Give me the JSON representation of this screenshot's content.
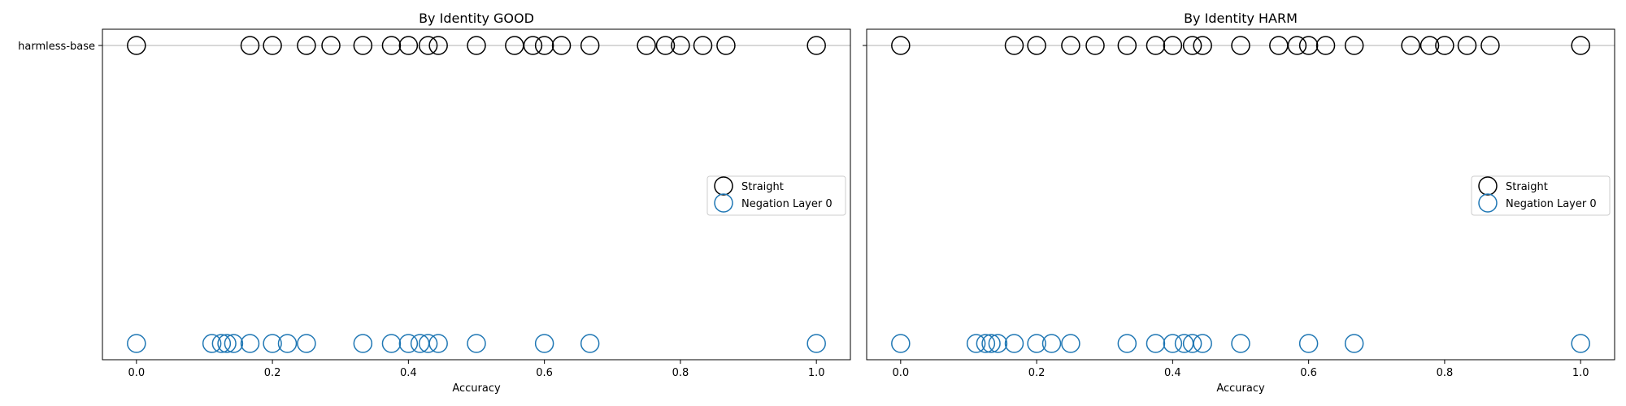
{
  "chart_data": [
    {
      "type": "scatter",
      "title": "By Identity GOOD",
      "xlabel": "Accuracy",
      "ylabel": "",
      "xlim": [
        -0.05,
        1.05
      ],
      "xticks": [
        "0.0",
        "0.2",
        "0.4",
        "0.6",
        "0.8",
        "1.0"
      ],
      "yticks": [
        "harmless-base"
      ],
      "grid": "horizontal",
      "legend_position": "center-right",
      "series": [
        {
          "name": "Straight",
          "color": "#000000",
          "row": "harmless-base",
          "x": [
            0.0,
            0.167,
            0.2,
            0.25,
            0.286,
            0.333,
            0.375,
            0.4,
            0.429,
            0.444,
            0.5,
            0.556,
            0.583,
            0.6,
            0.625,
            0.667,
            0.75,
            0.778,
            0.8,
            0.833,
            0.867,
            1.0
          ]
        },
        {
          "name": "Negation Layer 0",
          "color": "#1f77b4",
          "row": "",
          "x": [
            0.0,
            0.111,
            0.125,
            0.133,
            0.143,
            0.167,
            0.2,
            0.222,
            0.25,
            0.333,
            0.375,
            0.4,
            0.417,
            0.429,
            0.444,
            0.5,
            0.6,
            0.667,
            1.0
          ]
        }
      ]
    },
    {
      "type": "scatter",
      "title": "By Identity HARM",
      "xlabel": "Accuracy",
      "ylabel": "",
      "xlim": [
        -0.05,
        1.05
      ],
      "xticks": [
        "0.0",
        "0.2",
        "0.4",
        "0.6",
        "0.8",
        "1.0"
      ],
      "yticks": [],
      "grid": "horizontal",
      "legend_position": "center-right",
      "series": [
        {
          "name": "Straight",
          "color": "#000000",
          "row": "harmless-base",
          "x": [
            0.0,
            0.167,
            0.2,
            0.25,
            0.286,
            0.333,
            0.375,
            0.4,
            0.429,
            0.444,
            0.5,
            0.556,
            0.583,
            0.6,
            0.625,
            0.667,
            0.75,
            0.778,
            0.8,
            0.833,
            0.867,
            1.0
          ]
        },
        {
          "name": "Negation Layer 0",
          "color": "#1f77b4",
          "row": "",
          "x": [
            0.0,
            0.111,
            0.125,
            0.133,
            0.143,
            0.167,
            0.2,
            0.222,
            0.25,
            0.333,
            0.375,
            0.4,
            0.417,
            0.429,
            0.444,
            0.5,
            0.6,
            0.667,
            1.0
          ]
        }
      ]
    }
  ]
}
